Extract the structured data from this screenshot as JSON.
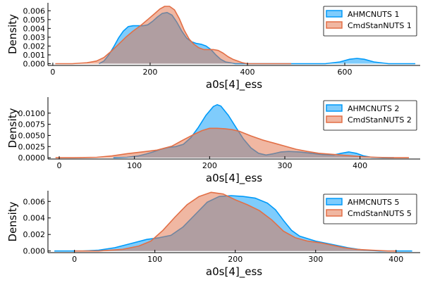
{
  "colors": {
    "ahmc": "#009af9",
    "cmdstan": "#e26f46",
    "axis": "#000000"
  },
  "chart_data": [
    {
      "type": "area",
      "xlabel": "a0s[4]_ess",
      "ylabel": "Density",
      "xlim": [
        -10,
        755
      ],
      "ylim": [
        -0.0002,
        0.0069
      ],
      "xticks": [
        0,
        200,
        400,
        600
      ],
      "yticks": [
        0.0,
        0.001,
        0.002,
        0.003,
        0.004,
        0.005,
        0.006
      ],
      "ytick_labels": [
        "0.000",
        "0.001",
        "0.002",
        "0.003",
        "0.004",
        "0.005",
        "0.006"
      ],
      "legend_position": "top-right",
      "series": [
        {
          "name": "AHMCNUTS 1",
          "x": [
            95,
            105,
            115,
            125,
            135,
            145,
            155,
            165,
            175,
            185,
            195,
            205,
            215,
            225,
            235,
            245,
            255,
            265,
            275,
            285,
            295,
            305,
            315,
            325,
            335,
            345,
            355,
            365,
            375,
            385,
            400,
            430,
            470,
            520,
            560,
            590,
            610,
            625,
            640,
            660,
            690,
            720,
            745
          ],
          "y": [
            0.0,
            0.0003,
            0.001,
            0.0019,
            0.0029,
            0.0037,
            0.0042,
            0.0043,
            0.0043,
            0.0043,
            0.0044,
            0.0048,
            0.0053,
            0.0057,
            0.0058,
            0.0055,
            0.0047,
            0.0037,
            0.0029,
            0.0025,
            0.0023,
            0.0022,
            0.002,
            0.0016,
            0.001,
            0.0005,
            0.0002,
            0.0001,
            0.0,
            0.0,
            0.0,
            0.0,
            0.0,
            0.0,
            0.0,
            0.0002,
            0.0005,
            0.0006,
            0.0005,
            0.0002,
            0.0,
            0.0,
            0.0
          ]
        },
        {
          "name": "CmdStanNUTS 1",
          "x": [
            5,
            40,
            70,
            90,
            105,
            120,
            135,
            150,
            165,
            180,
            195,
            210,
            220,
            230,
            240,
            250,
            260,
            270,
            280,
            290,
            300,
            310,
            320,
            330,
            340,
            350,
            360,
            370,
            380,
            390,
            400,
            420,
            450,
            490
          ],
          "y": [
            0.0,
            0.0,
            0.0001,
            0.0003,
            0.0007,
            0.0014,
            0.0022,
            0.003,
            0.0037,
            0.0043,
            0.005,
            0.0057,
            0.0062,
            0.0065,
            0.0065,
            0.0061,
            0.0051,
            0.0038,
            0.0028,
            0.0022,
            0.0018,
            0.0016,
            0.0016,
            0.0016,
            0.0015,
            0.0012,
            0.0008,
            0.0005,
            0.0003,
            0.0001,
            0.0,
            0.0,
            0.0,
            0.0
          ]
        }
      ]
    },
    {
      "type": "area",
      "xlabel": "a0s[4]_ess",
      "ylabel": "Density",
      "xlim": [
        -15,
        480
      ],
      "ylim": [
        -0.0003,
        0.0136
      ],
      "xticks": [
        0,
        100,
        200,
        300,
        400
      ],
      "yticks": [
        0.0,
        0.0025,
        0.005,
        0.0075,
        0.01
      ],
      "ytick_labels": [
        "0.0000",
        "0.0025",
        "0.0050",
        "0.0075",
        "0.0100"
      ],
      "legend_position": "top-right",
      "series": [
        {
          "name": "AHMCNUTS 2",
          "x": [
            72,
            90,
            105,
            115,
            125,
            135,
            145,
            155,
            165,
            175,
            185,
            195,
            205,
            210,
            215,
            225,
            235,
            245,
            255,
            265,
            275,
            285,
            295,
            305,
            320,
            335,
            350,
            365,
            375,
            385,
            395,
            405,
            415,
            430,
            445
          ],
          "y": [
            0.0,
            0.0001,
            0.0004,
            0.0008,
            0.0013,
            0.0019,
            0.0023,
            0.0025,
            0.003,
            0.0045,
            0.0068,
            0.0095,
            0.0115,
            0.0119,
            0.0116,
            0.0095,
            0.0068,
            0.0042,
            0.0022,
            0.001,
            0.0006,
            0.0009,
            0.0013,
            0.0014,
            0.0013,
            0.001,
            0.0007,
            0.0006,
            0.001,
            0.0013,
            0.001,
            0.0004,
            0.0001,
            0.0,
            0.0
          ]
        },
        {
          "name": "CmdStanNUTS 2",
          "x": [
            -5,
            20,
            50,
            70,
            90,
            110,
            130,
            150,
            165,
            180,
            190,
            200,
            210,
            220,
            230,
            240,
            255,
            270,
            285,
            300,
            315,
            330,
            345,
            360,
            375,
            390,
            405,
            420,
            440,
            465
          ],
          "y": [
            0.0,
            0.0,
            0.0001,
            0.0004,
            0.0009,
            0.0013,
            0.0017,
            0.0026,
            0.004,
            0.0053,
            0.0061,
            0.0066,
            0.0066,
            0.0065,
            0.0063,
            0.0059,
            0.0049,
            0.004,
            0.0033,
            0.0026,
            0.0019,
            0.0014,
            0.001,
            0.0008,
            0.0006,
            0.0004,
            0.0002,
            0.0001,
            0.0,
            0.0
          ]
        }
      ]
    },
    {
      "type": "area",
      "xlabel": "a0s[4]_ess",
      "ylabel": "Density",
      "xlim": [
        -33,
        430
      ],
      "ylim": [
        -0.0002,
        0.0073
      ],
      "xticks": [
        0,
        100,
        200,
        300,
        400
      ],
      "yticks": [
        0.0,
        0.002,
        0.004,
        0.006
      ],
      "ytick_labels": [
        "0.000",
        "0.002",
        "0.004",
        "0.006"
      ],
      "legend_position": "top-right",
      "series": [
        {
          "name": "AHMCNUTS 5",
          "x": [
            -25,
            10,
            30,
            50,
            70,
            90,
            105,
            120,
            135,
            150,
            165,
            180,
            195,
            210,
            225,
            240,
            250,
            260,
            270,
            280,
            300,
            320,
            340,
            360,
            380,
            400,
            420
          ],
          "y": [
            0.0,
            0.0,
            0.0001,
            0.0004,
            0.0009,
            0.0014,
            0.0016,
            0.0019,
            0.0029,
            0.0044,
            0.0059,
            0.0066,
            0.0067,
            0.0066,
            0.0064,
            0.0058,
            0.005,
            0.0037,
            0.0025,
            0.0018,
            0.0012,
            0.0008,
            0.0004,
            0.0001,
            0.0,
            0.0,
            0.0
          ]
        },
        {
          "name": "CmdStanNUTS 5",
          "x": [
            0,
            30,
            60,
            80,
            95,
            110,
            125,
            140,
            155,
            170,
            185,
            200,
            215,
            230,
            245,
            260,
            275,
            290,
            305,
            320,
            335,
            350,
            370,
            390,
            400
          ],
          "y": [
            0.0,
            0.0,
            0.0002,
            0.0006,
            0.0012,
            0.0025,
            0.0041,
            0.0056,
            0.0066,
            0.0071,
            0.0069,
            0.0062,
            0.0056,
            0.0049,
            0.0038,
            0.0024,
            0.0016,
            0.0012,
            0.001,
            0.0007,
            0.0004,
            0.0002,
            0.0001,
            0.0,
            0.0
          ]
        }
      ]
    }
  ]
}
